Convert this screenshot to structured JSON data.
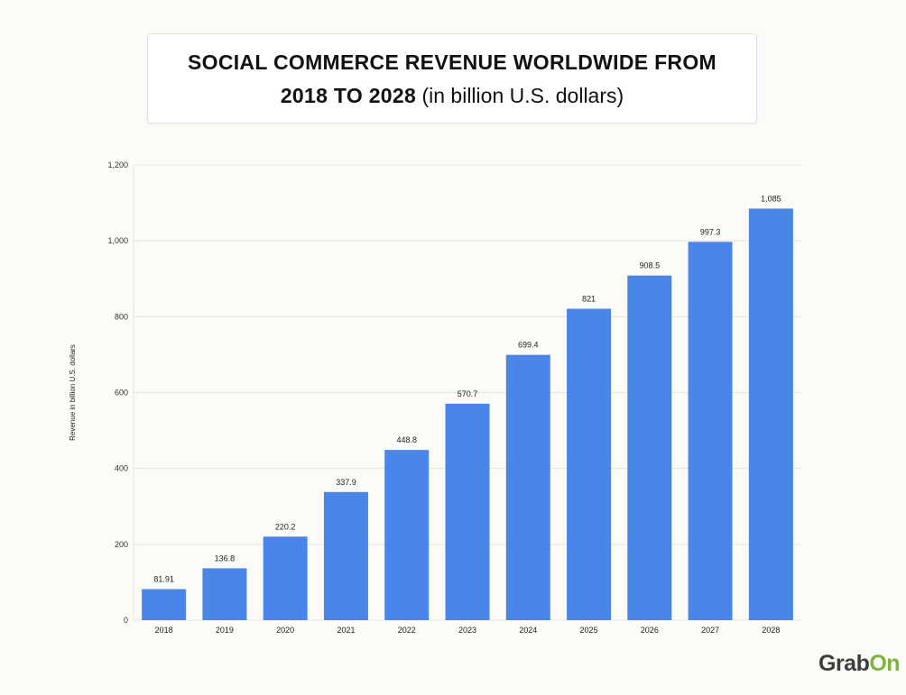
{
  "chart_data": {
    "type": "bar",
    "title_bold_line1": "SOCIAL COMMERCE REVENUE WORLDWIDE FROM",
    "title_bold_line2": "2018 TO 2028",
    "title_suffix": "(in billion U.S. dollars)",
    "xlabel": "",
    "ylabel": "Revenue in billion U.S. dollars",
    "ylim": [
      0,
      1200
    ],
    "yticks": [
      0,
      200,
      400,
      600,
      800,
      1000,
      1200
    ],
    "ytick_labels": [
      "0",
      "200",
      "400",
      "600",
      "800",
      "1,000",
      "1,200"
    ],
    "grid": true,
    "bar_color": "#4a86e8",
    "categories": [
      "2018",
      "2019",
      "2020",
      "2021",
      "2022",
      "2023",
      "2024",
      "2025",
      "2026",
      "2027",
      "2028"
    ],
    "values": [
      81.91,
      136.8,
      220.2,
      337.9,
      448.8,
      570.7,
      699.4,
      821,
      908.5,
      997.3,
      1085
    ],
    "data_labels": [
      "81.91",
      "136.8",
      "220.2",
      "337.9",
      "448.8",
      "570.7",
      "699.4",
      "821",
      "908.5",
      "997.3",
      "1,085"
    ]
  },
  "logo": {
    "part1": "Grab",
    "part2": "On",
    "color1": "#3d3d3d",
    "color2": "#7cb342"
  }
}
